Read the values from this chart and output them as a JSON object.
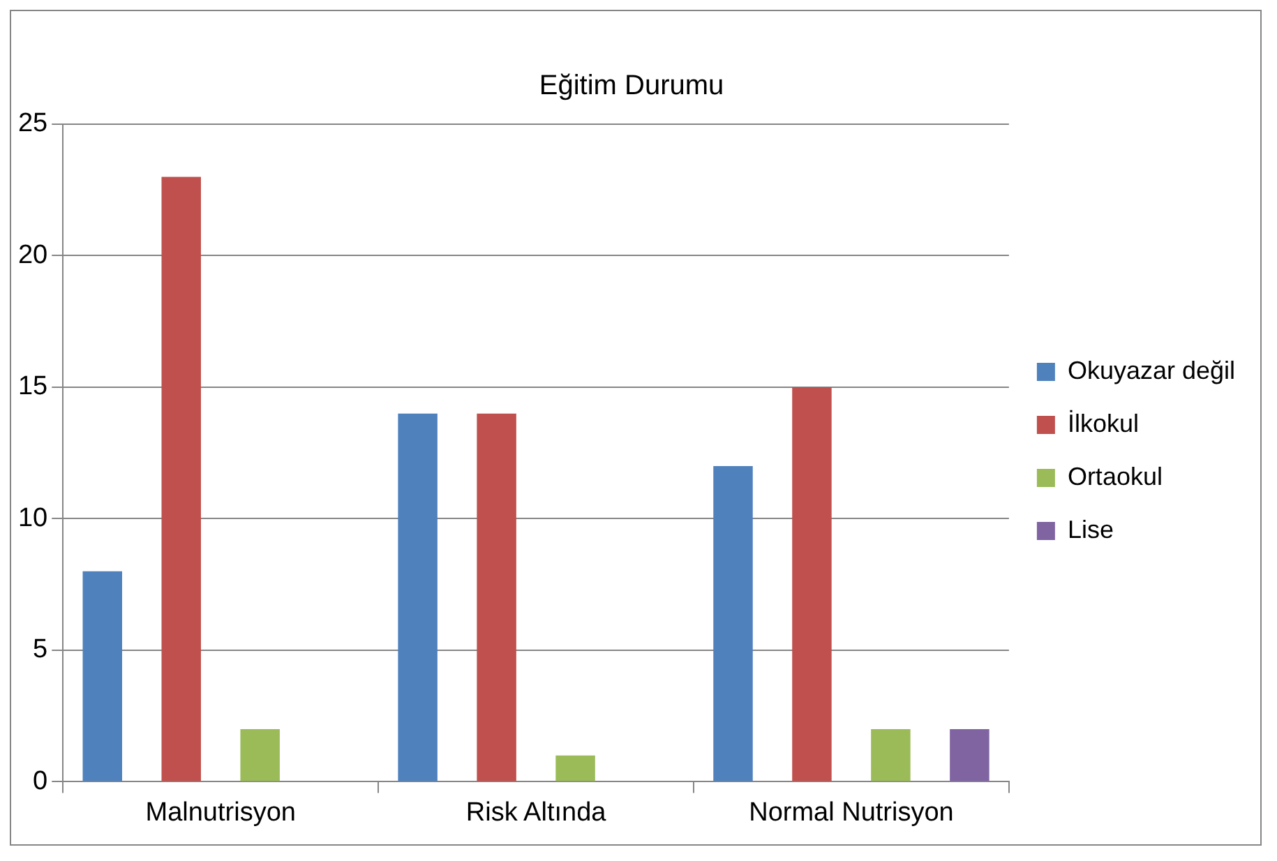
{
  "chart_data": {
    "type": "bar",
    "title": "Eğitim Durumu",
    "categories": [
      "Malnutrisyon",
      "Risk Altında",
      "Normal Nutrisyon"
    ],
    "series": [
      {
        "name": "Okuyazar değil",
        "color": "#4f81bd",
        "values": [
          8,
          14,
          12
        ]
      },
      {
        "name": "İlkokul",
        "color": "#c0504d",
        "values": [
          23,
          14,
          15
        ]
      },
      {
        "name": "Ortaokul",
        "color": "#9bbb59",
        "values": [
          2,
          1,
          2
        ]
      },
      {
        "name": "Lise",
        "color": "#8064a2",
        "values": [
          0,
          0,
          2
        ]
      }
    ],
    "ylim": [
      0,
      25
    ],
    "yticks": [
      0,
      5,
      10,
      15,
      20,
      25
    ],
    "grid": "y",
    "legend": "right"
  }
}
